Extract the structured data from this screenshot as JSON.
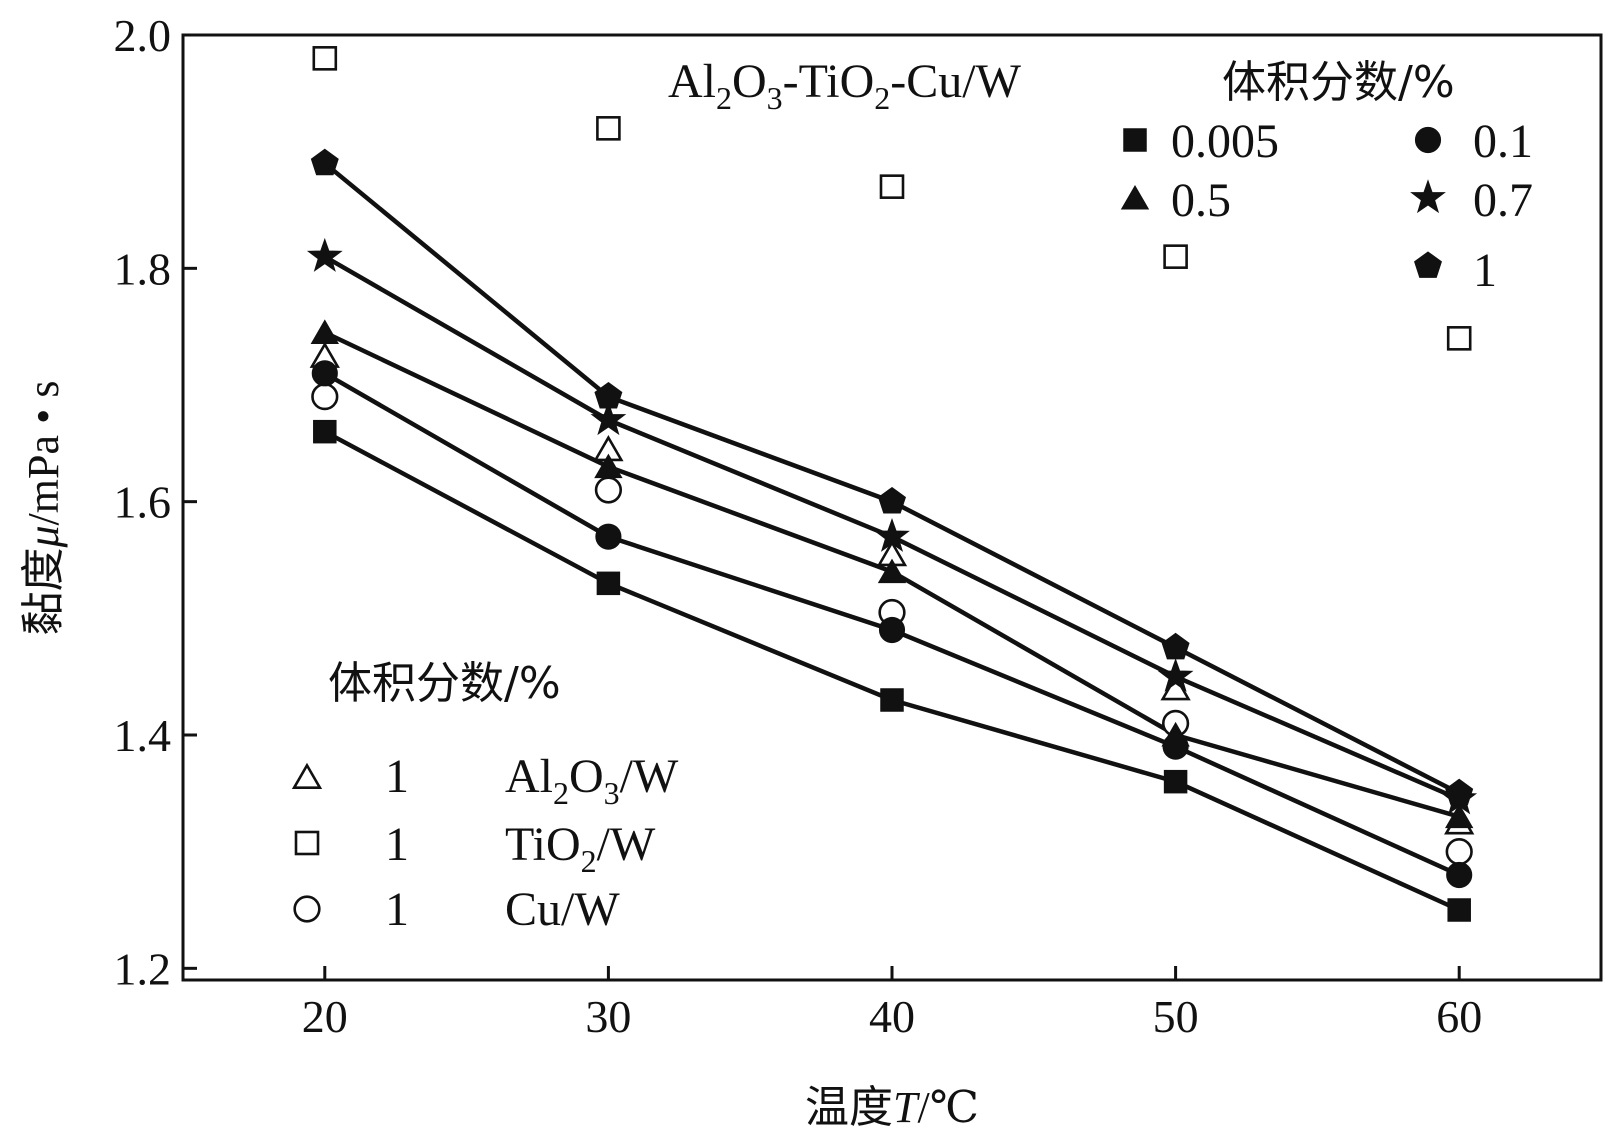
{
  "chart_data": {
    "type": "line",
    "xlabel": {
      "prefix": "温度",
      "symbol": "T",
      "unit": "/℃"
    },
    "ylabel": {
      "prefix": "黏度",
      "symbol": "μ",
      "unit": "/mPa • s"
    },
    "xlim": [
      15,
      65
    ],
    "ylim": [
      1.19,
      2.0
    ],
    "x_ticks": [
      20,
      30,
      40,
      50,
      60
    ],
    "x_tick_labels": [
      "20",
      "30",
      "40",
      "50",
      "60"
    ],
    "y_ticks": [
      1.2,
      1.4,
      1.6,
      1.8,
      2.0
    ],
    "y_tick_labels": [
      "1.2",
      "1.4",
      "1.6",
      "1.8",
      "2.0"
    ],
    "grid": false,
    "x": [
      20,
      30,
      40,
      50,
      60
    ],
    "hybrid_legend": {
      "heading": {
        "prefix": "Al",
        "s1": "2",
        "mid1": "O",
        "s2": "3",
        "mid2": "-TiO",
        "s3": "2",
        "suffix": "-Cu/W"
      },
      "title": "体积分数/%",
      "placement": "top-right"
    },
    "mono_legend": {
      "title": "体积分数/%",
      "placement": "bottom-left"
    },
    "series": [
      {
        "label": "0.005",
        "marker": "square-filled",
        "line": true,
        "values": [
          1.66,
          1.53,
          1.43,
          1.36,
          1.25
        ]
      },
      {
        "label": "0.1",
        "marker": "circle-filled",
        "line": true,
        "values": [
          1.71,
          1.57,
          1.49,
          1.39,
          1.28
        ]
      },
      {
        "label": "0.5",
        "marker": "triangle-filled",
        "line": true,
        "values": [
          1.745,
          1.63,
          1.54,
          1.4,
          1.33
        ]
      },
      {
        "label": "0.7",
        "marker": "star-filled",
        "line": true,
        "values": [
          1.81,
          1.67,
          1.57,
          1.45,
          1.345
        ]
      },
      {
        "label": "1",
        "marker": "pentagon-filled",
        "line": true,
        "values": [
          1.89,
          1.69,
          1.6,
          1.475,
          1.35
        ]
      },
      {
        "label": "1",
        "name": {
          "a": "Al",
          "s1": "2",
          "b": "O",
          "s2": "3",
          "c": "/W"
        },
        "marker": "triangle-open",
        "line": false,
        "values": [
          1.725,
          1.645,
          1.555,
          1.44,
          1.325
        ]
      },
      {
        "label": "1",
        "name": {
          "a": "TiO",
          "s1": "2",
          "b": "/W"
        },
        "marker": "square-open",
        "line": false,
        "values": [
          1.98,
          1.92,
          1.87,
          1.81,
          1.74
        ]
      },
      {
        "label": "1",
        "name": {
          "a": "Cu/W"
        },
        "marker": "circle-open",
        "line": false,
        "values": [
          1.69,
          1.61,
          1.505,
          1.41,
          1.3
        ]
      }
    ]
  }
}
